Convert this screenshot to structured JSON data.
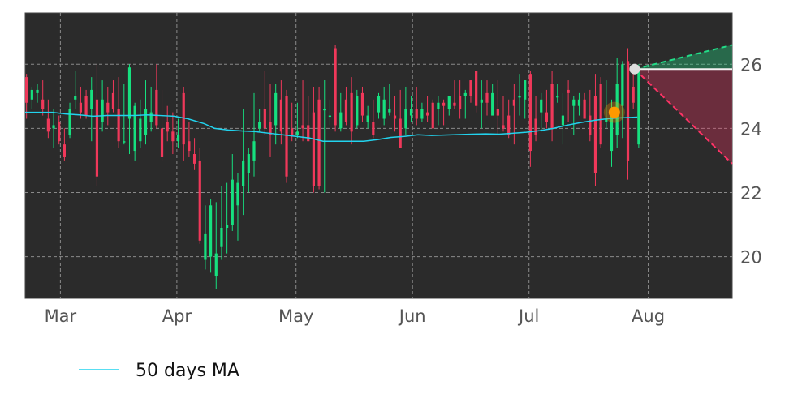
{
  "chart_data": {
    "type": "candlestick",
    "x_tick_labels": [
      "Mar",
      "Apr",
      "May",
      "Jun",
      "Jul",
      "Aug"
    ],
    "y_ticks": [
      20,
      22,
      24,
      26
    ],
    "ylim": [
      18.7,
      27.6
    ],
    "grid": true,
    "legend": {
      "placement": "bottom-left",
      "entries": [
        "50 days MA"
      ]
    },
    "colors": {
      "background": "#2b2b2b",
      "up": "#16e07f",
      "down": "#f0385a",
      "ma_line": "#22d3ee",
      "current_marker": "#ff9900",
      "forecast_point": "#dddddd",
      "forecast_upper": "#22dd88",
      "forecast_lower": "#ff3366",
      "grid": "#8a8a8a"
    },
    "candles": [
      [
        25.6,
        25.7,
        24.3,
        24.8
      ],
      [
        24.9,
        25.3,
        24.6,
        25.2
      ],
      [
        25.1,
        25.4,
        24.8,
        25.2
      ],
      [
        24.9,
        25.5,
        24.4,
        24.6
      ],
      [
        24.3,
        24.9,
        23.7,
        23.9
      ],
      [
        24.0,
        24.6,
        23.4,
        24.1
      ],
      [
        24.2,
        24.4,
        23.5,
        23.6
      ],
      [
        23.5,
        24.0,
        23.0,
        23.1
      ],
      [
        23.8,
        24.8,
        23.7,
        24.6
      ],
      [
        24.9,
        25.8,
        24.6,
        25.0
      ],
      [
        24.8,
        25.3,
        24.3,
        24.5
      ],
      [
        25.0,
        25.2,
        24.3,
        24.4
      ],
      [
        24.6,
        25.6,
        23.6,
        25.2
      ],
      [
        24.9,
        26.0,
        22.2,
        22.5
      ],
      [
        24.2,
        25.5,
        23.9,
        24.9
      ],
      [
        24.8,
        25.3,
        24.1,
        24.5
      ],
      [
        25.1,
        25.5,
        24.5,
        24.6
      ],
      [
        24.6,
        25.6,
        23.4,
        23.6
      ],
      [
        23.6,
        25.4,
        23.5,
        23.6
      ],
      [
        24.3,
        26.0,
        23.2,
        25.9
      ],
      [
        23.3,
        24.8,
        23.0,
        24.7
      ],
      [
        23.6,
        24.9,
        23.4,
        24.3
      ],
      [
        23.8,
        25.5,
        23.5,
        24.6
      ],
      [
        24.2,
        25.3,
        23.9,
        24.5
      ],
      [
        25.2,
        26.0,
        24.0,
        24.1
      ],
      [
        24.0,
        25.2,
        23.0,
        23.1
      ],
      [
        24.2,
        24.7,
        23.6,
        23.9
      ],
      [
        23.9,
        24.5,
        23.2,
        23.6
      ],
      [
        23.6,
        24.3,
        23.4,
        23.8
      ],
      [
        25.1,
        25.3,
        23.0,
        23.5
      ],
      [
        23.6,
        24.2,
        23.1,
        23.3
      ],
      [
        23.2,
        23.7,
        22.7,
        22.9
      ],
      [
        23.0,
        23.4,
        20.4,
        20.5
      ],
      [
        19.9,
        21.6,
        19.6,
        20.7
      ],
      [
        20.0,
        21.8,
        19.5,
        21.6
      ],
      [
        19.4,
        21.7,
        19.0,
        20.1
      ],
      [
        20.3,
        22.2,
        19.9,
        20.9
      ],
      [
        20.9,
        22.3,
        20.1,
        21.0
      ],
      [
        21.0,
        23.2,
        20.8,
        22.4
      ],
      [
        21.6,
        22.6,
        20.5,
        22.3
      ],
      [
        22.2,
        24.6,
        21.3,
        23.0
      ],
      [
        22.6,
        23.4,
        22.0,
        23.2
      ],
      [
        23.0,
        25.1,
        22.5,
        23.6
      ],
      [
        24.0,
        24.6,
        23.9,
        24.2
      ],
      [
        24.6,
        25.8,
        23.8,
        24.0
      ],
      [
        24.2,
        25.4,
        23.1,
        23.8
      ],
      [
        24.1,
        25.4,
        23.5,
        25.1
      ],
      [
        24.9,
        25.5,
        23.5,
        23.9
      ],
      [
        25.0,
        25.2,
        22.3,
        22.5
      ],
      [
        24.0,
        24.8,
        23.6,
        23.8
      ],
      [
        23.8,
        24.8,
        23.7,
        23.9
      ],
      [
        24.1,
        25.5,
        23.6,
        24.0
      ],
      [
        24.1,
        25.0,
        23.6,
        23.6
      ],
      [
        24.5,
        25.3,
        22.0,
        22.2
      ],
      [
        24.9,
        25.3,
        22.1,
        22.2
      ],
      [
        24.6,
        25.5,
        22.0,
        24.6
      ],
      [
        24.4,
        24.9,
        24.1,
        24.4
      ],
      [
        26.5,
        26.6,
        23.9,
        24.1
      ],
      [
        24.0,
        25.1,
        23.9,
        24.5
      ],
      [
        24.9,
        25.3,
        24.1,
        24.2
      ],
      [
        25.1,
        25.6,
        23.5,
        23.9
      ],
      [
        24.1,
        25.2,
        24.0,
        25.0
      ],
      [
        25.1,
        25.3,
        24.2,
        24.4
      ],
      [
        24.2,
        24.7,
        24.0,
        24.4
      ],
      [
        24.2,
        24.9,
        23.7,
        23.8
      ],
      [
        24.5,
        25.1,
        24.3,
        25.0
      ],
      [
        24.3,
        25.3,
        24.1,
        24.9
      ],
      [
        24.5,
        25.4,
        24.4,
        24.6
      ],
      [
        24.4,
        25.0,
        23.9,
        24.3
      ],
      [
        24.3,
        25.2,
        23.4,
        23.4
      ],
      [
        24.0,
        25.3,
        23.8,
        24.6
      ],
      [
        24.4,
        25.0,
        24.2,
        24.6
      ],
      [
        24.6,
        25.3,
        24.1,
        24.3
      ],
      [
        24.3,
        24.8,
        24.2,
        24.6
      ],
      [
        24.5,
        25.0,
        24.2,
        24.4
      ],
      [
        24.8,
        24.9,
        24.0,
        24.0
      ],
      [
        24.6,
        25.0,
        24.1,
        24.8
      ],
      [
        24.8,
        24.9,
        24.1,
        24.7
      ],
      [
        24.6,
        25.0,
        24.4,
        25.0
      ],
      [
        24.8,
        25.5,
        24.6,
        24.7
      ],
      [
        25.0,
        25.5,
        24.3,
        24.6
      ],
      [
        25.0,
        25.2,
        24.3,
        25.1
      ],
      [
        25.5,
        25.5,
        24.8,
        25.0
      ],
      [
        25.8,
        25.8,
        24.5,
        24.7
      ],
      [
        24.8,
        25.5,
        24.0,
        24.9
      ],
      [
        25.1,
        25.5,
        24.4,
        24.8
      ],
      [
        24.4,
        25.4,
        24.4,
        25.1
      ],
      [
        24.6,
        25.5,
        23.8,
        24.4
      ],
      [
        24.1,
        25.0,
        23.9,
        24.0
      ],
      [
        24.4,
        24.9,
        23.7,
        23.8
      ],
      [
        24.9,
        25.4,
        23.5,
        24.7
      ],
      [
        25.0,
        25.7,
        24.4,
        25.0
      ],
      [
        24.9,
        25.5,
        24.3,
        25.5
      ],
      [
        25.7,
        25.8,
        22.8,
        23.3
      ],
      [
        24.3,
        25.0,
        23.6,
        23.8
      ],
      [
        24.5,
        25.1,
        23.9,
        24.9
      ],
      [
        24.5,
        25.2,
        24.0,
        24.2
      ],
      [
        25.4,
        25.8,
        23.6,
        24.0
      ],
      [
        25.0,
        25.4,
        24.8,
        25.0
      ],
      [
        24.1,
        25.1,
        23.5,
        24.4
      ],
      [
        25.2,
        25.5,
        24.2,
        25.1
      ],
      [
        24.7,
        25.0,
        23.8,
        24.9
      ],
      [
        24.7,
        25.1,
        24.4,
        24.9
      ],
      [
        24.9,
        25.1,
        24.3,
        24.3
      ],
      [
        24.4,
        25.2,
        23.6,
        23.8
      ],
      [
        25.0,
        25.7,
        22.2,
        22.6
      ],
      [
        25.4,
        25.6,
        23.4,
        23.5
      ],
      [
        24.2,
        25.5,
        24.0,
        24.3
      ],
      [
        23.3,
        24.9,
        22.8,
        24.5
      ],
      [
        23.8,
        26.2,
        23.4,
        25.4
      ],
      [
        24.7,
        26.1,
        23.7,
        26.0
      ],
      [
        26.1,
        26.5,
        22.4,
        23.0
      ],
      [
        25.3,
        25.7,
        24.6,
        24.8
      ],
      [
        23.5,
        26.0,
        23.4,
        25.9
      ]
    ],
    "ma50": [
      [
        0,
        24.5
      ],
      [
        5,
        24.5
      ],
      [
        10,
        24.5
      ],
      [
        15,
        24.45
      ],
      [
        20,
        24.42
      ],
      [
        25,
        24.38
      ],
      [
        30,
        24.4
      ],
      [
        35,
        24.4
      ],
      [
        40,
        24.4
      ],
      [
        45,
        24.42
      ],
      [
        50,
        24.4
      ],
      [
        55,
        24.38
      ],
      [
        60,
        24.3
      ],
      [
        66,
        24.15
      ],
      [
        70,
        24.0
      ],
      [
        75,
        23.95
      ],
      [
        80,
        23.92
      ],
      [
        85,
        23.9
      ],
      [
        90,
        23.85
      ],
      [
        95,
        23.8
      ],
      [
        100,
        23.75
      ],
      [
        105,
        23.7
      ],
      [
        110,
        23.6
      ],
      [
        118,
        23.6
      ],
      [
        125,
        23.6
      ],
      [
        130,
        23.65
      ],
      [
        135,
        23.72
      ],
      [
        140,
        23.75
      ],
      [
        145,
        23.8
      ],
      [
        150,
        23.78
      ],
      [
        158,
        23.8
      ],
      [
        165,
        23.82
      ],
      [
        170,
        23.83
      ],
      [
        175,
        23.82
      ],
      [
        180,
        23.85
      ],
      [
        185,
        23.88
      ],
      [
        190,
        23.93
      ],
      [
        195,
        24.0
      ],
      [
        200,
        24.1
      ],
      [
        205,
        24.18
      ],
      [
        210,
        24.25
      ],
      [
        215,
        24.3
      ],
      [
        220,
        24.33
      ],
      [
        226,
        24.35
      ]
    ],
    "current_marker": {
      "x": 217.5,
      "y": 24.5
    },
    "forecast": {
      "start": {
        "x": 225,
        "y": 25.85
      },
      "end_x": 261,
      "upper_end": 26.6,
      "mid_end": 25.85,
      "lower_end": 22.9
    },
    "month_ticks_x": [
      13,
      56,
      100,
      143,
      186,
      230
    ]
  }
}
